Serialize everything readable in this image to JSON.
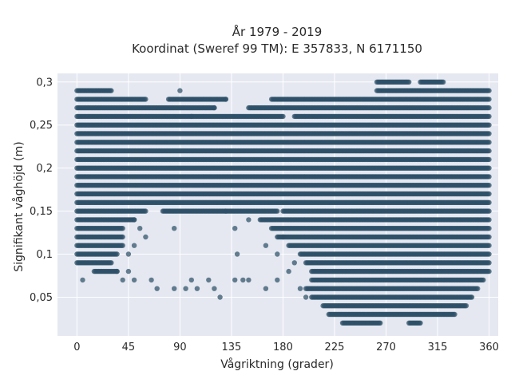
{
  "chart_data": {
    "type": "scatter",
    "title_line1": "År 1979 - 2019",
    "title_line2": "Koordinat (Sweref 99 TM): E 357833, N 6171150",
    "xlabel": "Vågriktning (grader)",
    "ylabel": "Signifikant våghöjd (m)",
    "xlim": [
      -17,
      368
    ],
    "ylim": [
      0.005,
      0.31
    ],
    "x_ticks": [
      {
        "value": 0,
        "label": "0"
      },
      {
        "value": 45,
        "label": "45"
      },
      {
        "value": 90,
        "label": "90"
      },
      {
        "value": 135,
        "label": "135"
      },
      {
        "value": 180,
        "label": "180"
      },
      {
        "value": 225,
        "label": "225"
      },
      {
        "value": 270,
        "label": "270"
      },
      {
        "value": 315,
        "label": "315"
      },
      {
        "value": 360,
        "label": "360"
      }
    ],
    "y_ticks": [
      {
        "value": 0.05,
        "label": "0,05"
      },
      {
        "value": 0.1,
        "label": "0,1"
      },
      {
        "value": 0.15,
        "label": "0,15"
      },
      {
        "value": 0.2,
        "label": "0,2"
      },
      {
        "value": 0.25,
        "label": "0,25"
      },
      {
        "value": 0.3,
        "label": "0,3"
      }
    ],
    "grid": true,
    "marker_color": "#2e5068",
    "plot_bg": "#e5e8f1",
    "grid_color": "#ffffff",
    "density_bands": [
      {
        "y": 0.3,
        "x_ranges": [
          [
            262,
            290
          ],
          [
            300,
            320
          ]
        ]
      },
      {
        "y": 0.29,
        "x_ranges": [
          [
            0,
            30
          ],
          [
            262,
            360
          ]
        ]
      },
      {
        "y": 0.28,
        "x_ranges": [
          [
            0,
            60
          ],
          [
            80,
            130
          ],
          [
            170,
            360
          ]
        ]
      },
      {
        "y": 0.27,
        "x_ranges": [
          [
            0,
            120
          ],
          [
            150,
            360
          ]
        ]
      },
      {
        "y": 0.26,
        "x_ranges": [
          [
            0,
            180
          ],
          [
            190,
            360
          ]
        ]
      },
      {
        "y": 0.25,
        "x_ranges": [
          [
            0,
            360
          ]
        ]
      },
      {
        "y": 0.24,
        "x_ranges": [
          [
            0,
            360
          ]
        ]
      },
      {
        "y": 0.23,
        "x_ranges": [
          [
            0,
            360
          ]
        ]
      },
      {
        "y": 0.22,
        "x_ranges": [
          [
            0,
            360
          ]
        ]
      },
      {
        "y": 0.21,
        "x_ranges": [
          [
            0,
            360
          ]
        ]
      },
      {
        "y": 0.2,
        "x_ranges": [
          [
            0,
            360
          ]
        ]
      },
      {
        "y": 0.19,
        "x_ranges": [
          [
            0,
            360
          ]
        ]
      },
      {
        "y": 0.18,
        "x_ranges": [
          [
            0,
            360
          ]
        ]
      },
      {
        "y": 0.17,
        "x_ranges": [
          [
            0,
            360
          ]
        ]
      },
      {
        "y": 0.16,
        "x_ranges": [
          [
            0,
            360
          ]
        ]
      },
      {
        "y": 0.15,
        "x_ranges": [
          [
            0,
            60
          ],
          [
            75,
            175
          ],
          [
            180,
            360
          ]
        ]
      },
      {
        "y": 0.14,
        "x_ranges": [
          [
            0,
            50
          ],
          [
            160,
            360
          ]
        ]
      },
      {
        "y": 0.13,
        "x_ranges": [
          [
            0,
            40
          ],
          [
            170,
            360
          ]
        ]
      },
      {
        "y": 0.12,
        "x_ranges": [
          [
            0,
            40
          ],
          [
            175,
            360
          ]
        ]
      },
      {
        "y": 0.11,
        "x_ranges": [
          [
            0,
            40
          ],
          [
            185,
            360
          ]
        ]
      },
      {
        "y": 0.1,
        "x_ranges": [
          [
            0,
            35
          ],
          [
            195,
            360
          ]
        ]
      },
      {
        "y": 0.09,
        "x_ranges": [
          [
            0,
            30
          ],
          [
            200,
            360
          ]
        ]
      },
      {
        "y": 0.08,
        "x_ranges": [
          [
            15,
            35
          ],
          [
            205,
            360
          ]
        ]
      },
      {
        "y": 0.07,
        "x_ranges": [
          [
            205,
            355
          ]
        ]
      },
      {
        "y": 0.06,
        "x_ranges": [
          [
            200,
            350
          ]
        ]
      },
      {
        "y": 0.05,
        "x_ranges": [
          [
            205,
            345
          ]
        ]
      },
      {
        "y": 0.04,
        "x_ranges": [
          [
            215,
            340
          ]
        ]
      },
      {
        "y": 0.03,
        "x_ranges": [
          [
            220,
            330
          ]
        ]
      },
      {
        "y": 0.02,
        "x_ranges": [
          [
            232,
            265
          ],
          [
            290,
            300
          ]
        ]
      }
    ],
    "outlier_points": [
      [
        90,
        0.29
      ],
      [
        120,
        0.27
      ],
      [
        100,
        0.26
      ],
      [
        130,
        0.28
      ],
      [
        50,
        0.14
      ],
      [
        55,
        0.13
      ],
      [
        60,
        0.12
      ],
      [
        50,
        0.11
      ],
      [
        45,
        0.1
      ],
      [
        85,
        0.13
      ],
      [
        138,
        0.13
      ],
      [
        130,
        0.15
      ],
      [
        150,
        0.14
      ],
      [
        140,
        0.1
      ],
      [
        165,
        0.11
      ],
      [
        180,
        0.12
      ],
      [
        175,
        0.1
      ],
      [
        5,
        0.07
      ],
      [
        35,
        0.08
      ],
      [
        45,
        0.08
      ],
      [
        40,
        0.07
      ],
      [
        50,
        0.07
      ],
      [
        65,
        0.07
      ],
      [
        70,
        0.06
      ],
      [
        85,
        0.06
      ],
      [
        95,
        0.06
      ],
      [
        100,
        0.07
      ],
      [
        115,
        0.07
      ],
      [
        105,
        0.06
      ],
      [
        120,
        0.06
      ],
      [
        125,
        0.05
      ],
      [
        138,
        0.07
      ],
      [
        145,
        0.07
      ],
      [
        150,
        0.07
      ],
      [
        165,
        0.06
      ],
      [
        175,
        0.07
      ],
      [
        185,
        0.08
      ],
      [
        190,
        0.09
      ],
      [
        195,
        0.06
      ],
      [
        200,
        0.05
      ]
    ]
  }
}
